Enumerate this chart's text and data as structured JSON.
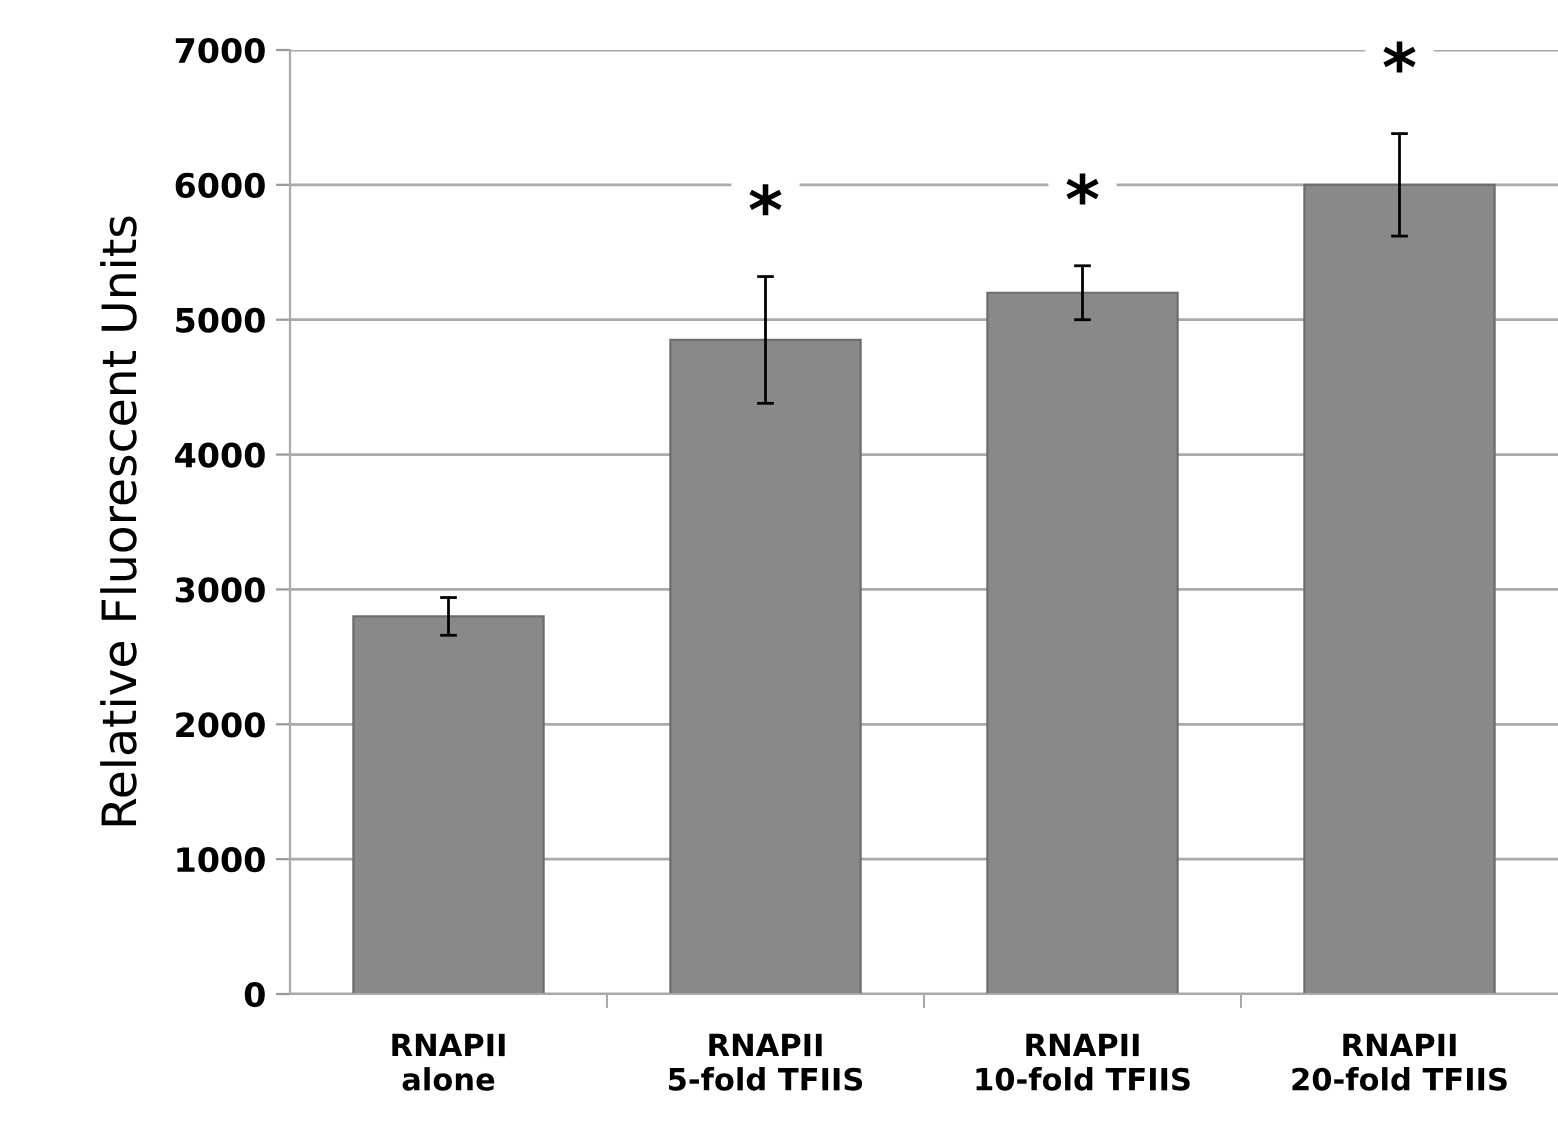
{
  "chart_data": {
    "type": "bar",
    "ylabel": "Relative Fluorescent Units",
    "categories": [
      "RNAPII\nalone",
      "RNAPII\n5-fold TFIIS",
      "RNAPII\n10-fold TFIIS",
      "RNAPII\n20-fold TFIIS"
    ],
    "values": [
      2800,
      4850,
      5200,
      6000
    ],
    "errors": [
      140,
      470,
      200,
      380
    ],
    "color": "#898989",
    "ylim": [
      0,
      7000
    ],
    "yticks": [
      0,
      1000,
      2000,
      3000,
      4000,
      5000,
      6000,
      7000
    ],
    "grid": "y",
    "annotations": [
      "*",
      "*",
      "*"
    ]
  }
}
